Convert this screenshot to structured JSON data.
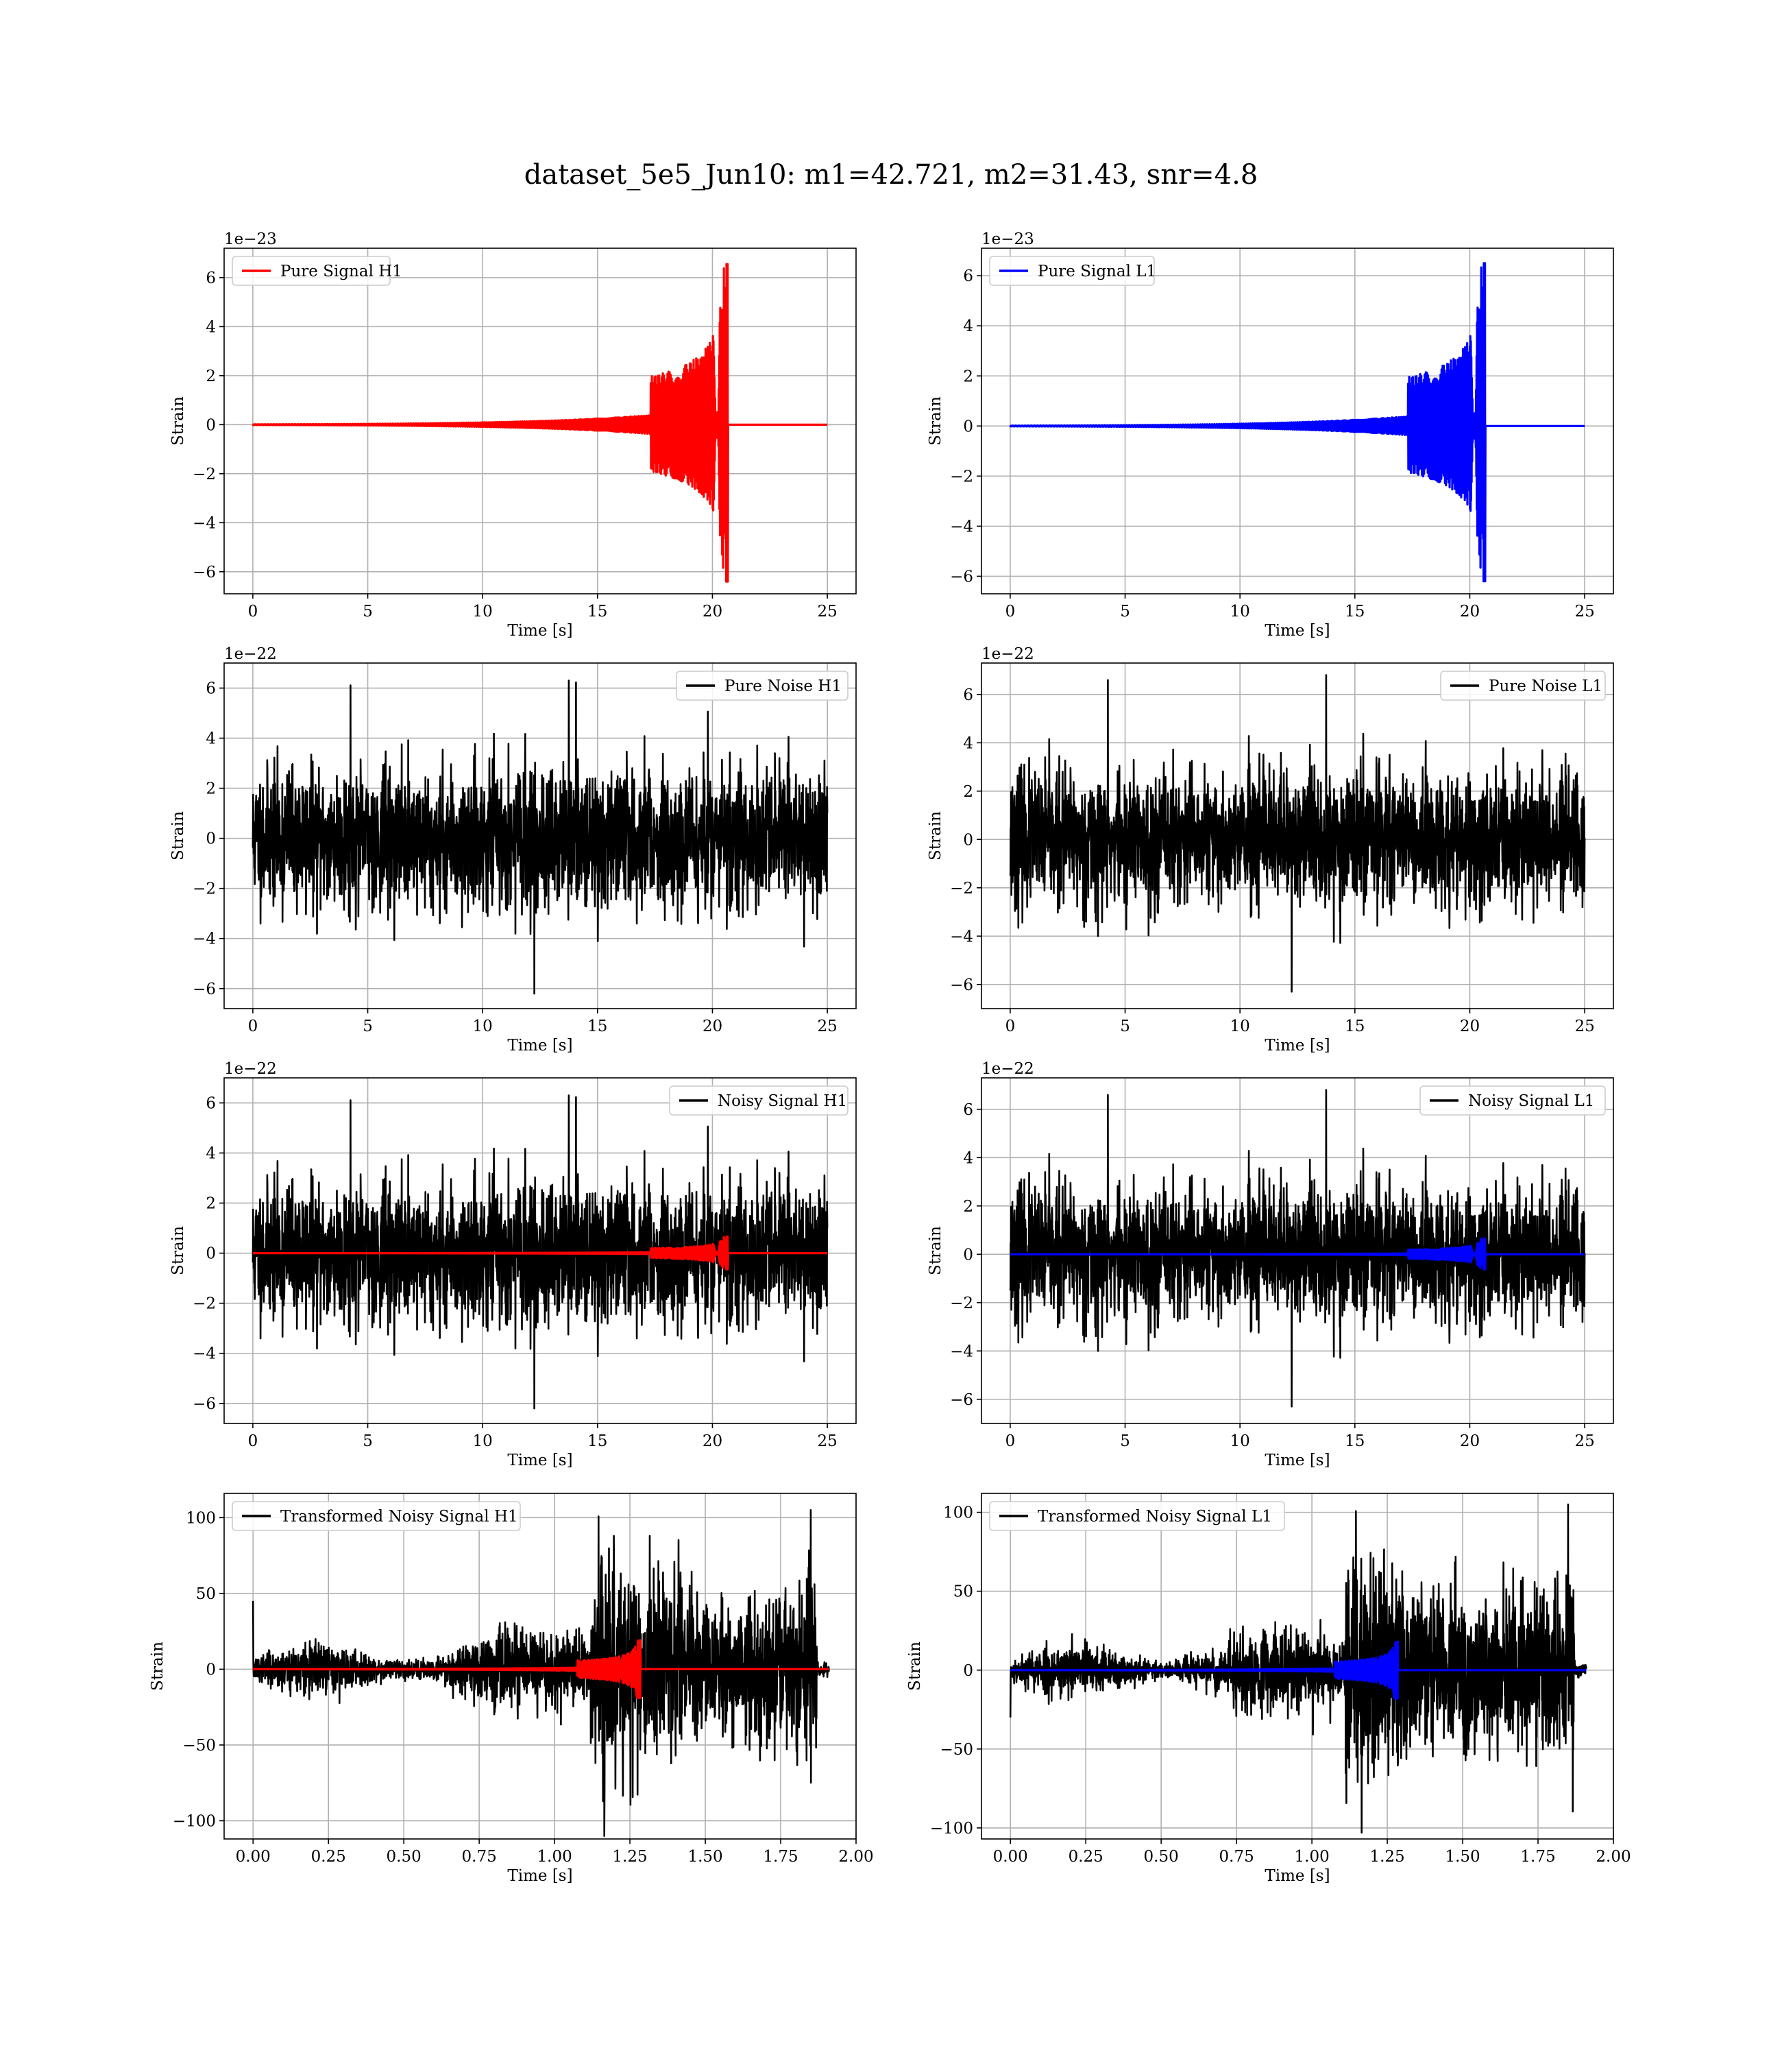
{
  "figure": {
    "title": "dataset_5e5_Jun10: m1=42.721, m2=31.43, snr=4.8"
  },
  "chart_data": [
    {
      "id": "pure-signal-h1",
      "type": "line",
      "xlabel": "Time [s]",
      "ylabel": "Strain",
      "offset_label": "1e−23",
      "xlim": [
        -1.25,
        26.25
      ],
      "ylim": [
        -6.9,
        7.2
      ],
      "xticks": [
        0,
        5,
        10,
        15,
        20,
        25
      ],
      "xtick_labels": [
        "0",
        "5",
        "10",
        "15",
        "20",
        "25"
      ],
      "yticks": [
        -6,
        -4,
        -2,
        0,
        2,
        4,
        6
      ],
      "ytick_labels": [
        "−6",
        "−4",
        "−2",
        "0",
        "2",
        "4",
        "6"
      ],
      "legend": {
        "loc": "upper left",
        "entries": [
          {
            "label": "Pure Signal H1",
            "color": "#ff0000"
          }
        ]
      },
      "grid": true,
      "series": [
        {
          "name": "Pure Signal H1",
          "color": "#ff0000",
          "kind": "chirp",
          "x_range": [
            0,
            25
          ],
          "merger_time": 20.6,
          "peak": [
            6.55,
            -6.4
          ]
        }
      ]
    },
    {
      "id": "pure-signal-l1",
      "type": "line",
      "xlabel": "Time [s]",
      "ylabel": "Strain",
      "offset_label": "1e−23",
      "xlim": [
        -1.25,
        26.25
      ],
      "ylim": [
        -6.7,
        7.1
      ],
      "xticks": [
        0,
        5,
        10,
        15,
        20,
        25
      ],
      "xtick_labels": [
        "0",
        "5",
        "10",
        "15",
        "20",
        "25"
      ],
      "yticks": [
        -6,
        -4,
        -2,
        0,
        2,
        4,
        6
      ],
      "ytick_labels": [
        "−6",
        "−4",
        "−2",
        "0",
        "2",
        "4",
        "6"
      ],
      "legend": {
        "loc": "upper left",
        "entries": [
          {
            "label": "Pure Signal L1",
            "color": "#0000ff"
          }
        ]
      },
      "grid": true,
      "series": [
        {
          "name": "Pure Signal L1",
          "color": "#0000ff",
          "kind": "chirp",
          "x_range": [
            0,
            25
          ],
          "merger_time": 20.6,
          "peak": [
            6.5,
            -6.2
          ]
        }
      ]
    },
    {
      "id": "pure-noise-h1",
      "type": "line",
      "xlabel": "Time [s]",
      "ylabel": "Strain",
      "offset_label": "1e−22",
      "xlim": [
        -1.25,
        26.25
      ],
      "ylim": [
        -6.8,
        7.0
      ],
      "xticks": [
        0,
        5,
        10,
        15,
        20,
        25
      ],
      "xtick_labels": [
        "0",
        "5",
        "10",
        "15",
        "20",
        "25"
      ],
      "yticks": [
        -6,
        -4,
        -2,
        0,
        2,
        4,
        6
      ],
      "ytick_labels": [
        "−6",
        "−4",
        "−2",
        "0",
        "2",
        "4",
        "6"
      ],
      "legend": {
        "loc": "upper right",
        "entries": [
          {
            "label": "Pure Noise H1",
            "color": "#000000"
          }
        ]
      },
      "grid": true,
      "series": [
        {
          "name": "Pure Noise H1",
          "color": "#000000",
          "kind": "noise",
          "x_range": [
            0,
            25
          ],
          "seed": 11,
          "max": 6.3,
          "min": -6.2
        }
      ]
    },
    {
      "id": "pure-noise-l1",
      "type": "line",
      "xlabel": "Time [s]",
      "ylabel": "Strain",
      "offset_label": "1e−22",
      "xlim": [
        -1.25,
        26.25
      ],
      "ylim": [
        -7.0,
        7.3
      ],
      "xticks": [
        0,
        5,
        10,
        15,
        20,
        25
      ],
      "xtick_labels": [
        "0",
        "5",
        "10",
        "15",
        "20",
        "25"
      ],
      "yticks": [
        -6,
        -4,
        -2,
        0,
        2,
        4,
        6
      ],
      "ytick_labels": [
        "−6",
        "−4",
        "−2",
        "0",
        "2",
        "4",
        "6"
      ],
      "legend": {
        "loc": "upper right",
        "entries": [
          {
            "label": "Pure Noise L1",
            "color": "#000000"
          }
        ]
      },
      "grid": true,
      "series": [
        {
          "name": "Pure Noise L1",
          "color": "#000000",
          "kind": "noise",
          "x_range": [
            0,
            25
          ],
          "seed": 23,
          "max": 6.8,
          "min": -6.3
        }
      ]
    },
    {
      "id": "noisy-signal-h1",
      "type": "line",
      "xlabel": "Time [s]",
      "ylabel": "Strain",
      "offset_label": "1e−22",
      "xlim": [
        -1.25,
        26.25
      ],
      "ylim": [
        -6.8,
        7.0
      ],
      "xticks": [
        0,
        5,
        10,
        15,
        20,
        25
      ],
      "xtick_labels": [
        "0",
        "5",
        "10",
        "15",
        "20",
        "25"
      ],
      "yticks": [
        -6,
        -4,
        -2,
        0,
        2,
        4,
        6
      ],
      "ytick_labels": [
        "−6",
        "−4",
        "−2",
        "0",
        "2",
        "4",
        "6"
      ],
      "legend": {
        "loc": "upper right",
        "entries": [
          {
            "label": "Noisy Signal H1",
            "color": "#000000"
          }
        ]
      },
      "grid": true,
      "series": [
        {
          "name": "Noisy Signal H1",
          "color": "#000000",
          "kind": "noise",
          "x_range": [
            0,
            25
          ],
          "seed": 11,
          "max": 6.3,
          "min": -6.2
        },
        {
          "name": "Pure Signal H1",
          "color": "#ff0000",
          "kind": "chirp",
          "x_range": [
            0,
            25
          ],
          "merger_time": 20.6,
          "peak": [
            0.66,
            -0.64
          ]
        }
      ]
    },
    {
      "id": "noisy-signal-l1",
      "type": "line",
      "xlabel": "Time [s]",
      "ylabel": "Strain",
      "offset_label": "1e−22",
      "xlim": [
        -1.25,
        26.25
      ],
      "ylim": [
        -7.0,
        7.3
      ],
      "xticks": [
        0,
        5,
        10,
        15,
        20,
        25
      ],
      "xtick_labels": [
        "0",
        "5",
        "10",
        "15",
        "20",
        "25"
      ],
      "yticks": [
        -6,
        -4,
        -2,
        0,
        2,
        4,
        6
      ],
      "ytick_labels": [
        "−6",
        "−4",
        "−2",
        "0",
        "2",
        "4",
        "6"
      ],
      "legend": {
        "loc": "upper right",
        "entries": [
          {
            "label": "Noisy Signal L1",
            "color": "#000000"
          }
        ]
      },
      "grid": true,
      "series": [
        {
          "name": "Noisy Signal L1",
          "color": "#000000",
          "kind": "noise",
          "x_range": [
            0,
            25
          ],
          "seed": 23,
          "max": 6.8,
          "min": -6.3
        },
        {
          "name": "Pure Signal L1",
          "color": "#0000ff",
          "kind": "chirp",
          "x_range": [
            0,
            25
          ],
          "merger_time": 20.6,
          "peak": [
            0.65,
            -0.62
          ]
        }
      ]
    },
    {
      "id": "transformed-noisy-signal-h1",
      "type": "line",
      "xlabel": "Time [s]",
      "ylabel": "Strain",
      "offset_label": "",
      "xlim": [
        -0.096,
        2.0
      ],
      "ylim": [
        -112,
        116
      ],
      "xticks": [
        0,
        0.25,
        0.5,
        0.75,
        1.0,
        1.25,
        1.5,
        1.75,
        2.0
      ],
      "xtick_labels": [
        "0.00",
        "0.25",
        "0.50",
        "0.75",
        "1.00",
        "1.25",
        "1.50",
        "1.75",
        "2.00"
      ],
      "yticks": [
        -100,
        -50,
        0,
        50,
        100
      ],
      "ytick_labels": [
        "−100",
        "−50",
        "0",
        "50",
        "100"
      ],
      "legend": {
        "loc": "upper left",
        "entries": [
          {
            "label": "Transformed Noisy Signal H1",
            "color": "#000000"
          }
        ]
      },
      "grid": true,
      "series": [
        {
          "name": "Transformed Noisy Signal H1",
          "color": "#000000",
          "kind": "transformed",
          "x_range": [
            0,
            1.91
          ],
          "seed": 37,
          "max": 105,
          "min": -110,
          "start_spike": 45,
          "jump_time": 1.12,
          "end_time": 1.87
        },
        {
          "name": "Transformed Pure Signal H1",
          "color": "#ff0000",
          "kind": "chirp",
          "x_range": [
            0,
            1.91
          ],
          "merger_time": 1.28,
          "peak": [
            19,
            -19
          ]
        }
      ]
    },
    {
      "id": "transformed-noisy-signal-l1",
      "type": "line",
      "xlabel": "Time [s]",
      "ylabel": "Strain",
      "offset_label": "",
      "xlim": [
        -0.096,
        2.0
      ],
      "ylim": [
        -107,
        112
      ],
      "xticks": [
        0,
        0.25,
        0.5,
        0.75,
        1.0,
        1.25,
        1.5,
        1.75,
        2.0
      ],
      "xtick_labels": [
        "0.00",
        "0.25",
        "0.50",
        "0.75",
        "1.00",
        "1.25",
        "1.50",
        "1.75",
        "2.00"
      ],
      "yticks": [
        -100,
        -50,
        0,
        50,
        100
      ],
      "ytick_labels": [
        "−100",
        "−50",
        "0",
        "50",
        "100"
      ],
      "legend": {
        "loc": "upper left",
        "entries": [
          {
            "label": "Transformed Noisy Signal L1",
            "color": "#000000"
          }
        ]
      },
      "grid": true,
      "series": [
        {
          "name": "Transformed Noisy Signal L1",
          "color": "#000000",
          "kind": "transformed",
          "x_range": [
            0,
            1.91
          ],
          "seed": 53,
          "max": 105,
          "min": -103,
          "start_spike": -30,
          "jump_time": 1.11,
          "end_time": 1.87
        },
        {
          "name": "Transformed Pure Signal L1",
          "color": "#0000ff",
          "kind": "chirp",
          "x_range": [
            0,
            1.91
          ],
          "merger_time": 1.28,
          "peak": [
            18,
            -18
          ]
        }
      ]
    }
  ]
}
